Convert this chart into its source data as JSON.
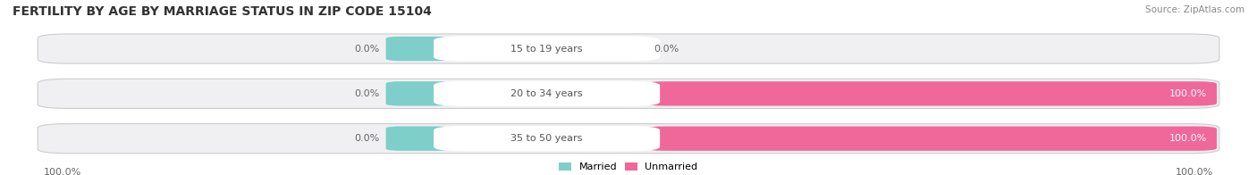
{
  "title": "FERTILITY BY AGE BY MARRIAGE STATUS IN ZIP CODE 15104",
  "source": "Source: ZipAtlas.com",
  "categories": [
    "15 to 19 years",
    "20 to 34 years",
    "35 to 50 years"
  ],
  "married_vals": [
    0.0,
    0.0,
    0.0
  ],
  "unmarried_vals": [
    0.0,
    100.0,
    100.0
  ],
  "married_color": "#7ececa",
  "unmarried_color": "#f0689a",
  "bar_bg_color": "#f0f0f2",
  "bar_border_color": "#cccccc",
  "title_fontsize": 10,
  "source_fontsize": 7.5,
  "label_fontsize": 8,
  "category_fontsize": 8,
  "legend_fontsize": 8,
  "bottom_left_label": "100.0%",
  "bottom_right_label": "100.0%"
}
